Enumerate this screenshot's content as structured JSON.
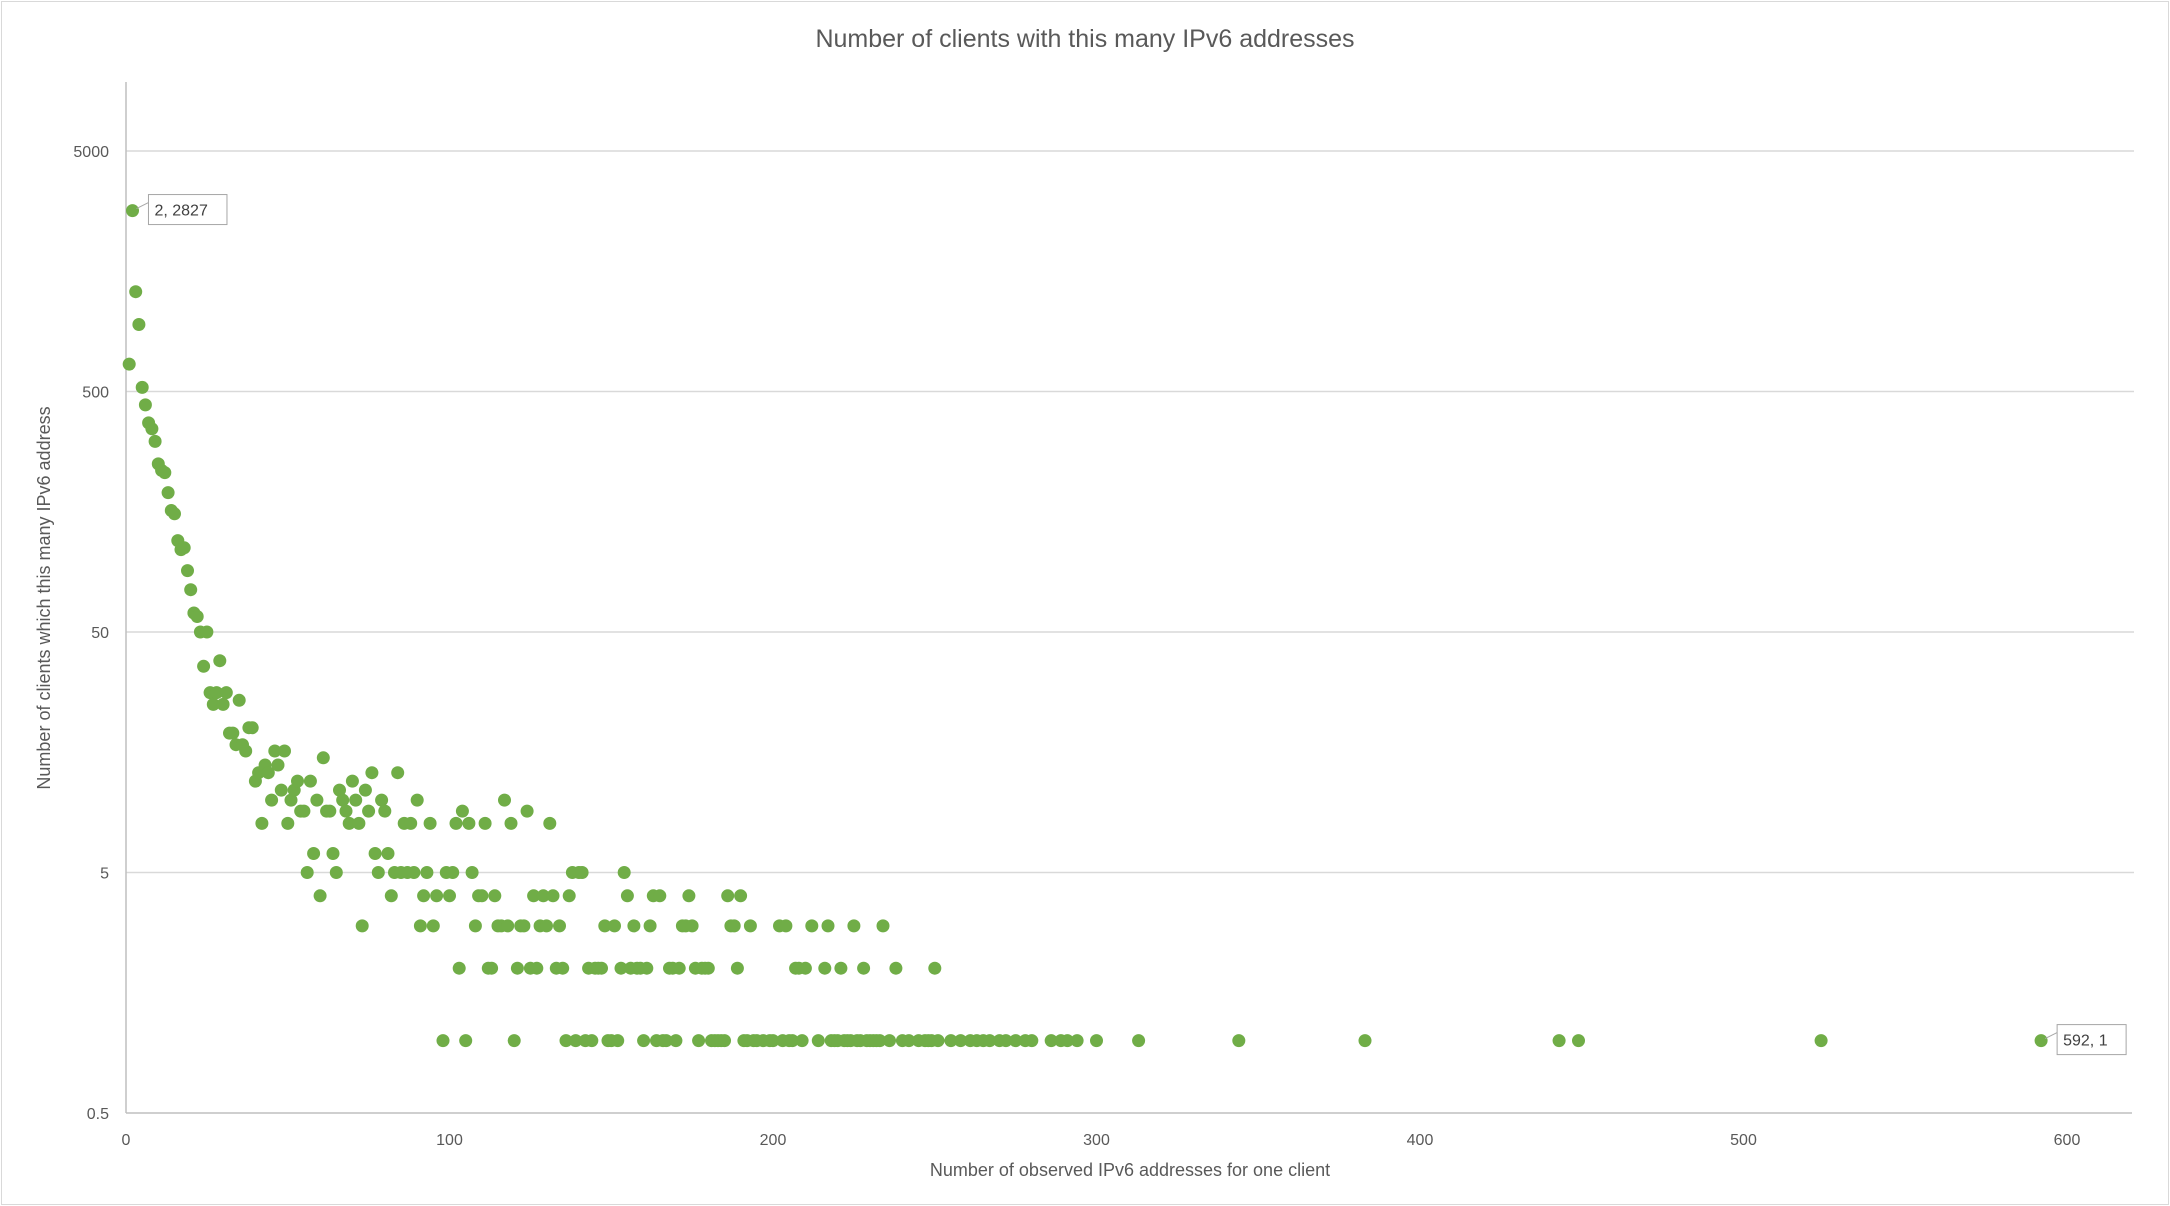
{
  "chart_data": {
    "type": "scatter",
    "title": "Number of clients with this many IPv6 addresses",
    "xlabel": "Number of observed IPv6 addresses for one client",
    "ylabel": "Number of clients which this many IPv6 address",
    "xlim": [
      0,
      620
    ],
    "ylim": [
      0.5,
      10000
    ],
    "y_scale": "log",
    "x_ticks": [
      "0",
      "100",
      "200",
      "300",
      "400",
      "500",
      "600"
    ],
    "y_ticks": [
      "0.5",
      "5",
      "50",
      "500",
      "5000"
    ],
    "grid": "horizontal",
    "legend": "none",
    "marker_color": "#70ad47",
    "data_labels": [
      {
        "x": 2,
        "y": 2827,
        "text": "2, 2827"
      },
      {
        "x": 592,
        "y": 1,
        "text": "592, 1"
      }
    ],
    "points": [
      [
        1,
        650
      ],
      [
        2,
        2827
      ],
      [
        3,
        1300
      ],
      [
        4,
        950
      ],
      [
        5,
        520
      ],
      [
        6,
        440
      ],
      [
        7,
        370
      ],
      [
        8,
        350
      ],
      [
        9,
        310
      ],
      [
        10,
        250
      ],
      [
        11,
        235
      ],
      [
        12,
        230
      ],
      [
        13,
        190
      ],
      [
        14,
        160
      ],
      [
        15,
        155
      ],
      [
        16,
        120
      ],
      [
        17,
        110
      ],
      [
        18,
        112
      ],
      [
        19,
        90
      ],
      [
        20,
        75
      ],
      [
        21,
        60
      ],
      [
        22,
        58
      ],
      [
        23,
        50
      ],
      [
        25,
        50
      ],
      [
        24,
        36
      ],
      [
        26,
        28
      ],
      [
        27,
        25
      ],
      [
        28,
        28
      ],
      [
        29,
        38
      ],
      [
        30,
        25
      ],
      [
        31,
        28
      ],
      [
        32,
        19
      ],
      [
        33,
        19
      ],
      [
        34,
        17
      ],
      [
        35,
        26
      ],
      [
        36,
        17
      ],
      [
        37,
        16
      ],
      [
        38,
        20
      ],
      [
        39,
        20
      ],
      [
        40,
        12
      ],
      [
        41,
        13
      ],
      [
        42,
        8
      ],
      [
        43,
        14
      ],
      [
        44,
        13
      ],
      [
        45,
        10
      ],
      [
        46,
        16
      ],
      [
        47,
        14
      ],
      [
        48,
        11
      ],
      [
        49,
        16
      ],
      [
        50,
        8
      ],
      [
        51,
        10
      ],
      [
        52,
        11
      ],
      [
        53,
        12
      ],
      [
        54,
        9
      ],
      [
        55,
        9
      ],
      [
        56,
        5
      ],
      [
        57,
        12
      ],
      [
        58,
        6
      ],
      [
        59,
        10
      ],
      [
        60,
        4
      ],
      [
        61,
        15
      ],
      [
        62,
        9
      ],
      [
        63,
        9
      ],
      [
        64,
        6
      ],
      [
        65,
        5
      ],
      [
        66,
        11
      ],
      [
        67,
        10
      ],
      [
        68,
        9
      ],
      [
        69,
        8
      ],
      [
        70,
        12
      ],
      [
        71,
        10
      ],
      [
        72,
        8
      ],
      [
        73,
        3
      ],
      [
        74,
        11
      ],
      [
        75,
        9
      ],
      [
        76,
        13
      ],
      [
        77,
        6
      ],
      [
        78,
        5
      ],
      [
        79,
        10
      ],
      [
        80,
        9
      ],
      [
        81,
        6
      ],
      [
        82,
        4
      ],
      [
        83,
        5
      ],
      [
        84,
        13
      ],
      [
        85,
        5
      ],
      [
        86,
        8
      ],
      [
        87,
        5
      ],
      [
        88,
        8
      ],
      [
        89,
        5
      ],
      [
        90,
        10
      ],
      [
        91,
        3
      ],
      [
        92,
        4
      ],
      [
        93,
        5
      ],
      [
        94,
        8
      ],
      [
        95,
        3
      ],
      [
        96,
        4
      ],
      [
        98,
        1
      ],
      [
        99,
        5
      ],
      [
        100,
        4
      ],
      [
        101,
        5
      ],
      [
        102,
        8
      ],
      [
        103,
        2
      ],
      [
        104,
        9
      ],
      [
        105,
        1
      ],
      [
        106,
        8
      ],
      [
        107,
        5
      ],
      [
        108,
        3
      ],
      [
        109,
        4
      ],
      [
        110,
        4
      ],
      [
        111,
        8
      ],
      [
        112,
        2
      ],
      [
        113,
        2
      ],
      [
        114,
        4
      ],
      [
        115,
        3
      ],
      [
        116,
        3
      ],
      [
        117,
        10
      ],
      [
        118,
        3
      ],
      [
        119,
        8
      ],
      [
        120,
        1
      ],
      [
        121,
        2
      ],
      [
        122,
        3
      ],
      [
        123,
        3
      ],
      [
        124,
        9
      ],
      [
        125,
        2
      ],
      [
        126,
        4
      ],
      [
        127,
        2
      ],
      [
        128,
        3
      ],
      [
        129,
        4
      ],
      [
        130,
        3
      ],
      [
        131,
        8
      ],
      [
        132,
        4
      ],
      [
        133,
        2
      ],
      [
        134,
        3
      ],
      [
        135,
        2
      ],
      [
        136,
        1
      ],
      [
        137,
        4
      ],
      [
        138,
        5
      ],
      [
        139,
        1
      ],
      [
        140,
        5
      ],
      [
        141,
        5
      ],
      [
        142,
        1
      ],
      [
        143,
        2
      ],
      [
        144,
        1
      ],
      [
        145,
        2
      ],
      [
        146,
        2
      ],
      [
        147,
        2
      ],
      [
        148,
        3
      ],
      [
        149,
        1
      ],
      [
        150,
        1
      ],
      [
        151,
        3
      ],
      [
        152,
        1
      ],
      [
        153,
        2
      ],
      [
        154,
        5
      ],
      [
        155,
        4
      ],
      [
        156,
        2
      ],
      [
        157,
        3
      ],
      [
        158,
        2
      ],
      [
        159,
        2
      ],
      [
        160,
        1
      ],
      [
        161,
        2
      ],
      [
        162,
        3
      ],
      [
        163,
        4
      ],
      [
        164,
        1
      ],
      [
        165,
        4
      ],
      [
        166,
        1
      ],
      [
        167,
        1
      ],
      [
        168,
        2
      ],
      [
        169,
        2
      ],
      [
        170,
        1
      ],
      [
        171,
        2
      ],
      [
        172,
        3
      ],
      [
        173,
        3
      ],
      [
        174,
        4
      ],
      [
        175,
        3
      ],
      [
        176,
        2
      ],
      [
        177,
        1
      ],
      [
        178,
        2
      ],
      [
        179,
        2
      ],
      [
        180,
        2
      ],
      [
        181,
        1
      ],
      [
        182,
        1
      ],
      [
        183,
        1
      ],
      [
        184,
        1
      ],
      [
        185,
        1
      ],
      [
        186,
        4
      ],
      [
        187,
        3
      ],
      [
        188,
        3
      ],
      [
        189,
        2
      ],
      [
        190,
        4
      ],
      [
        191,
        1
      ],
      [
        192,
        1
      ],
      [
        193,
        3
      ],
      [
        194,
        1
      ],
      [
        195,
        1
      ],
      [
        197,
        1
      ],
      [
        199,
        1
      ],
      [
        200,
        1
      ],
      [
        202,
        3
      ],
      [
        203,
        1
      ],
      [
        204,
        3
      ],
      [
        205,
        1
      ],
      [
        206,
        1
      ],
      [
        207,
        2
      ],
      [
        208,
        2
      ],
      [
        209,
        1
      ],
      [
        210,
        2
      ],
      [
        212,
        3
      ],
      [
        214,
        1
      ],
      [
        216,
        2
      ],
      [
        217,
        3
      ],
      [
        218,
        1
      ],
      [
        219,
        1
      ],
      [
        220,
        1
      ],
      [
        221,
        2
      ],
      [
        222,
        1
      ],
      [
        223,
        1
      ],
      [
        224,
        1
      ],
      [
        225,
        3
      ],
      [
        226,
        1
      ],
      [
        227,
        1
      ],
      [
        228,
        2
      ],
      [
        229,
        1
      ],
      [
        230,
        1
      ],
      [
        231,
        1
      ],
      [
        232,
        1
      ],
      [
        233,
        1
      ],
      [
        234,
        3
      ],
      [
        236,
        1
      ],
      [
        238,
        2
      ],
      [
        240,
        1
      ],
      [
        242,
        1
      ],
      [
        245,
        1
      ],
      [
        247,
        1
      ],
      [
        248,
        1
      ],
      [
        249,
        1
      ],
      [
        250,
        2
      ],
      [
        251,
        1
      ],
      [
        255,
        1
      ],
      [
        258,
        1
      ],
      [
        261,
        1
      ],
      [
        263,
        1
      ],
      [
        265,
        1
      ],
      [
        267,
        1
      ],
      [
        270,
        1
      ],
      [
        272,
        1
      ],
      [
        275,
        1
      ],
      [
        278,
        1
      ],
      [
        280,
        1
      ],
      [
        286,
        1
      ],
      [
        289,
        1
      ],
      [
        291,
        1
      ],
      [
        294,
        1
      ],
      [
        300,
        1
      ],
      [
        313,
        1
      ],
      [
        344,
        1
      ],
      [
        383,
        1
      ],
      [
        443,
        1
      ],
      [
        449,
        1
      ],
      [
        524,
        1
      ],
      [
        592,
        1
      ]
    ]
  }
}
